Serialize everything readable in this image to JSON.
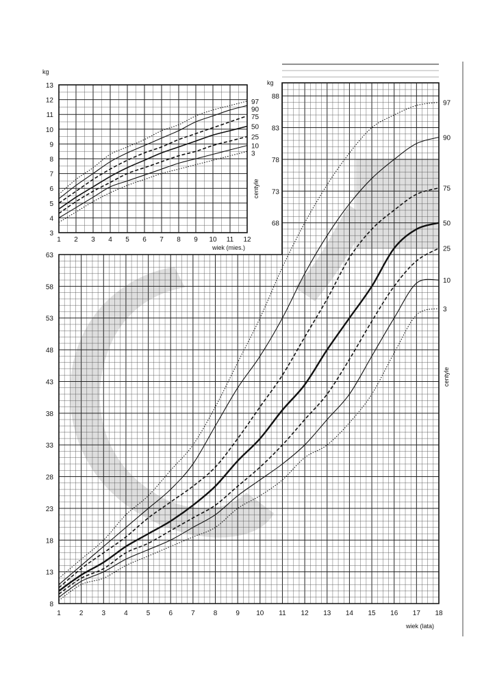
{
  "chart_data": [
    {
      "id": "infant",
      "type": "line",
      "ylabel": "kg",
      "xlabel": "wiek (mies.)",
      "xlim": [
        1,
        12
      ],
      "ylim": [
        3,
        13
      ],
      "x_ticks": [
        1,
        2,
        3,
        4,
        5,
        6,
        7,
        8,
        9,
        10,
        11,
        12
      ],
      "y_ticks": [
        3,
        4,
        5,
        6,
        7,
        8,
        9,
        10,
        11,
        12,
        13
      ],
      "grid": true,
      "series": [
        {
          "name": "97",
          "style": "dotted",
          "x": [
            1,
            2,
            3,
            4,
            5,
            6,
            7,
            8,
            9,
            10,
            11,
            12
          ],
          "y": [
            5.6,
            6.6,
            7.4,
            8.3,
            8.8,
            9.3,
            9.9,
            10.3,
            10.9,
            11.3,
            11.6,
            11.9
          ]
        },
        {
          "name": "90",
          "style": "solid",
          "x": [
            1,
            2,
            3,
            4,
            5,
            6,
            7,
            8,
            9,
            10,
            11,
            12
          ],
          "y": [
            5.3,
            6.2,
            7.0,
            7.8,
            8.4,
            8.9,
            9.4,
            9.9,
            10.5,
            10.9,
            11.3,
            11.6
          ]
        },
        {
          "name": "75",
          "style": "dashed",
          "x": [
            1,
            2,
            3,
            4,
            5,
            6,
            7,
            8,
            9,
            10,
            11,
            12
          ],
          "y": [
            5.0,
            5.8,
            6.6,
            7.3,
            7.9,
            8.4,
            8.8,
            9.3,
            9.7,
            10.1,
            10.5,
            10.9
          ]
        },
        {
          "name": "50",
          "style": "solid",
          "x": [
            1,
            2,
            3,
            4,
            5,
            6,
            7,
            8,
            9,
            10,
            11,
            12
          ],
          "y": [
            4.6,
            5.4,
            6.1,
            6.8,
            7.4,
            7.9,
            8.4,
            8.8,
            9.2,
            9.6,
            9.9,
            10.2
          ]
        },
        {
          "name": "25",
          "style": "dashed",
          "x": [
            1,
            2,
            3,
            4,
            5,
            6,
            7,
            8,
            9,
            10,
            11,
            12
          ],
          "y": [
            4.3,
            5.1,
            5.8,
            6.4,
            7.0,
            7.4,
            7.8,
            8.2,
            8.5,
            8.9,
            9.2,
            9.5
          ]
        },
        {
          "name": "10",
          "style": "solid",
          "x": [
            1,
            2,
            3,
            4,
            5,
            6,
            7,
            8,
            9,
            10,
            11,
            12
          ],
          "y": [
            4.0,
            4.7,
            5.4,
            6.1,
            6.5,
            6.9,
            7.3,
            7.7,
            8.0,
            8.3,
            8.6,
            8.9
          ]
        },
        {
          "name": "3",
          "style": "dotted",
          "x": [
            1,
            2,
            3,
            4,
            5,
            6,
            7,
            8,
            9,
            10,
            11,
            12
          ],
          "y": [
            3.7,
            4.4,
            5.1,
            5.7,
            6.2,
            6.6,
            7.0,
            7.3,
            7.6,
            7.9,
            8.2,
            8.5
          ]
        }
      ],
      "right_labels": [
        "97",
        "90",
        "75",
        "50",
        "25",
        "10",
        "3"
      ],
      "right_caption": "centyle"
    },
    {
      "id": "child",
      "type": "line",
      "ylabel": "kg",
      "xlabel": "wiek (lata)",
      "xlim": [
        1,
        18
      ],
      "ylim": [
        8,
        93
      ],
      "x_ticks": [
        1,
        2,
        3,
        4,
        5,
        6,
        7,
        8,
        9,
        10,
        11,
        12,
        13,
        14,
        15,
        16,
        17,
        18
      ],
      "y_ticks_lower": [
        8,
        13,
        18,
        23,
        28,
        33,
        38,
        43,
        48,
        53,
        58,
        63
      ],
      "y_ticks_upper": [
        68,
        73,
        78,
        83,
        88
      ],
      "grid": true,
      "series": [
        {
          "name": "97",
          "style": "dotted",
          "x": [
            1,
            2,
            3,
            4,
            5,
            6,
            7,
            8,
            9,
            10,
            11,
            12,
            13,
            14,
            15,
            16,
            17,
            18
          ],
          "y": [
            12,
            15,
            18,
            22,
            25,
            29,
            33,
            39,
            46,
            53,
            61,
            68,
            74,
            79,
            83,
            85,
            86.5,
            87
          ]
        },
        {
          "name": "90",
          "style": "solid",
          "x": [
            1,
            2,
            3,
            4,
            5,
            6,
            7,
            8,
            9,
            10,
            11,
            12,
            13,
            14,
            15,
            16,
            17,
            18
          ],
          "y": [
            11,
            14,
            17,
            20,
            23,
            26,
            30,
            36,
            42,
            47,
            53,
            60,
            66,
            71,
            75,
            78,
            80.5,
            81.5
          ]
        },
        {
          "name": "75",
          "style": "dashed",
          "x": [
            1,
            2,
            3,
            4,
            5,
            6,
            7,
            8,
            9,
            10,
            11,
            12,
            13,
            14,
            15,
            16,
            17,
            18
          ],
          "y": [
            10.5,
            13.5,
            16,
            18.5,
            21.5,
            24,
            26.5,
            29.5,
            34,
            39,
            44,
            50,
            56,
            62.5,
            67,
            70,
            72.5,
            73.5
          ]
        },
        {
          "name": "50",
          "style": "solid",
          "x": [
            1,
            2,
            3,
            4,
            5,
            6,
            7,
            8,
            9,
            10,
            11,
            12,
            13,
            14,
            15,
            16,
            17,
            18
          ],
          "y": [
            10,
            12.5,
            14.5,
            17,
            19,
            21,
            23.5,
            26.5,
            30.5,
            34,
            38.5,
            42.5,
            48,
            53,
            58,
            64,
            67,
            68
          ]
        },
        {
          "name": "25",
          "style": "dashed",
          "x": [
            1,
            2,
            3,
            4,
            5,
            6,
            7,
            8,
            9,
            10,
            11,
            12,
            13,
            14,
            15,
            16,
            17,
            18
          ],
          "y": [
            9.5,
            12,
            13.5,
            16,
            17.5,
            19.5,
            21.5,
            23.5,
            26.5,
            29.5,
            33,
            37,
            41,
            46.5,
            52.5,
            58,
            62,
            64
          ]
        },
        {
          "name": "10",
          "style": "solid",
          "x": [
            1,
            2,
            3,
            4,
            5,
            6,
            7,
            8,
            9,
            10,
            11,
            12,
            13,
            14,
            15,
            16,
            17,
            18
          ],
          "y": [
            9,
            11.5,
            13,
            15,
            16.5,
            18,
            20,
            22,
            25,
            27.5,
            30,
            33,
            37,
            41,
            47,
            53,
            58.5,
            59
          ]
        },
        {
          "name": "3",
          "style": "dotted",
          "x": [
            1,
            2,
            3,
            4,
            5,
            6,
            7,
            8,
            9,
            10,
            11,
            12,
            13,
            14,
            15,
            16,
            17,
            18
          ],
          "y": [
            8.5,
            11,
            12,
            14,
            15.5,
            17,
            18.5,
            20,
            23,
            25,
            27.5,
            31,
            33,
            36.5,
            41,
            47.5,
            53.5,
            54.5
          ]
        }
      ],
      "right_labels": [
        "97",
        "90",
        "75",
        "50",
        "25",
        "10",
        "3"
      ],
      "right_caption": "centyle"
    }
  ]
}
